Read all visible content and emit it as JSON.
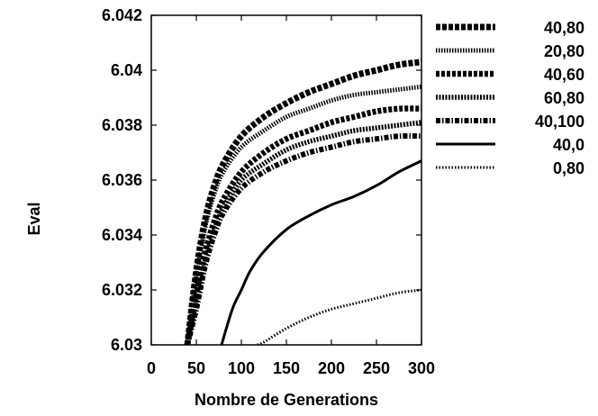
{
  "chart_data": {
    "type": "line",
    "title": "",
    "xlabel": "Nombre de Generations",
    "ylabel": "Eval",
    "xlim": [
      0,
      300
    ],
    "ylim": [
      6.03,
      6.042
    ],
    "xticks": [
      "0",
      "50",
      "100",
      "150",
      "200",
      "250",
      "300"
    ],
    "yticks": [
      "6.03",
      "6.032",
      "6.034",
      "6.036",
      "6.038",
      "6.04",
      "6.042"
    ],
    "grid": false,
    "legend_position": "outside-right",
    "series": [
      {
        "name": "40,80",
        "style": "dashed-heavy",
        "x": [
          40,
          50,
          60,
          70,
          80,
          100,
          125,
          150,
          175,
          200,
          225,
          250,
          275,
          300
        ],
        "y": [
          6.03,
          6.0327,
          6.0346,
          6.0358,
          6.0366,
          6.0376,
          6.0383,
          6.0388,
          6.0392,
          6.0395,
          6.0398,
          6.04,
          6.0402,
          6.0403
        ]
      },
      {
        "name": "20,80",
        "style": "dotted-fine",
        "x": [
          40,
          50,
          60,
          70,
          80,
          100,
          125,
          150,
          175,
          200,
          225,
          250,
          275,
          300
        ],
        "y": [
          6.03,
          6.0325,
          6.0343,
          6.0355,
          6.0363,
          6.0372,
          6.0378,
          6.0383,
          6.0386,
          6.0389,
          6.0391,
          6.0392,
          6.0393,
          6.0394
        ]
      },
      {
        "name": "40,60",
        "style": "dashed-medium",
        "x": [
          40,
          50,
          60,
          70,
          80,
          100,
          125,
          150,
          175,
          200,
          225,
          250,
          275,
          300
        ],
        "y": [
          6.03,
          6.0318,
          6.0334,
          6.0345,
          6.0353,
          6.0363,
          6.037,
          6.0375,
          6.0378,
          6.0381,
          6.0383,
          6.0385,
          6.0386,
          6.0386
        ]
      },
      {
        "name": "60,80",
        "style": "dotted-medium",
        "x": [
          40,
          50,
          60,
          70,
          80,
          100,
          125,
          150,
          175,
          200,
          225,
          250,
          275,
          300
        ],
        "y": [
          6.03,
          6.0315,
          6.0331,
          6.0342,
          6.035,
          6.036,
          6.0366,
          6.0371,
          6.0374,
          6.0376,
          6.0378,
          6.0379,
          6.038,
          6.0381
        ]
      },
      {
        "name": "40,100",
        "style": "dash-dot",
        "x": [
          40,
          50,
          60,
          70,
          80,
          100,
          125,
          150,
          175,
          200,
          225,
          250,
          275,
          300
        ],
        "y": [
          6.03,
          6.0313,
          6.0329,
          6.034,
          6.0348,
          6.0357,
          6.0363,
          6.0367,
          6.037,
          6.0372,
          6.0374,
          6.0375,
          6.0376,
          6.0376
        ]
      },
      {
        "name": "40,0",
        "style": "solid",
        "x": [
          78,
          90,
          100,
          110,
          125,
          150,
          175,
          200,
          225,
          250,
          275,
          300
        ],
        "y": [
          6.03,
          6.0313,
          6.032,
          6.0327,
          6.0334,
          6.0342,
          6.0347,
          6.0351,
          6.0354,
          6.0358,
          6.0363,
          6.0367
        ]
      },
      {
        "name": "0,80",
        "style": "dotted-sparse",
        "x": [
          118,
          125,
          150,
          175,
          200,
          225,
          250,
          275,
          300
        ],
        "y": [
          6.03,
          6.0301,
          6.0306,
          6.031,
          6.0313,
          6.0315,
          6.0317,
          6.0319,
          6.032
        ]
      }
    ]
  }
}
